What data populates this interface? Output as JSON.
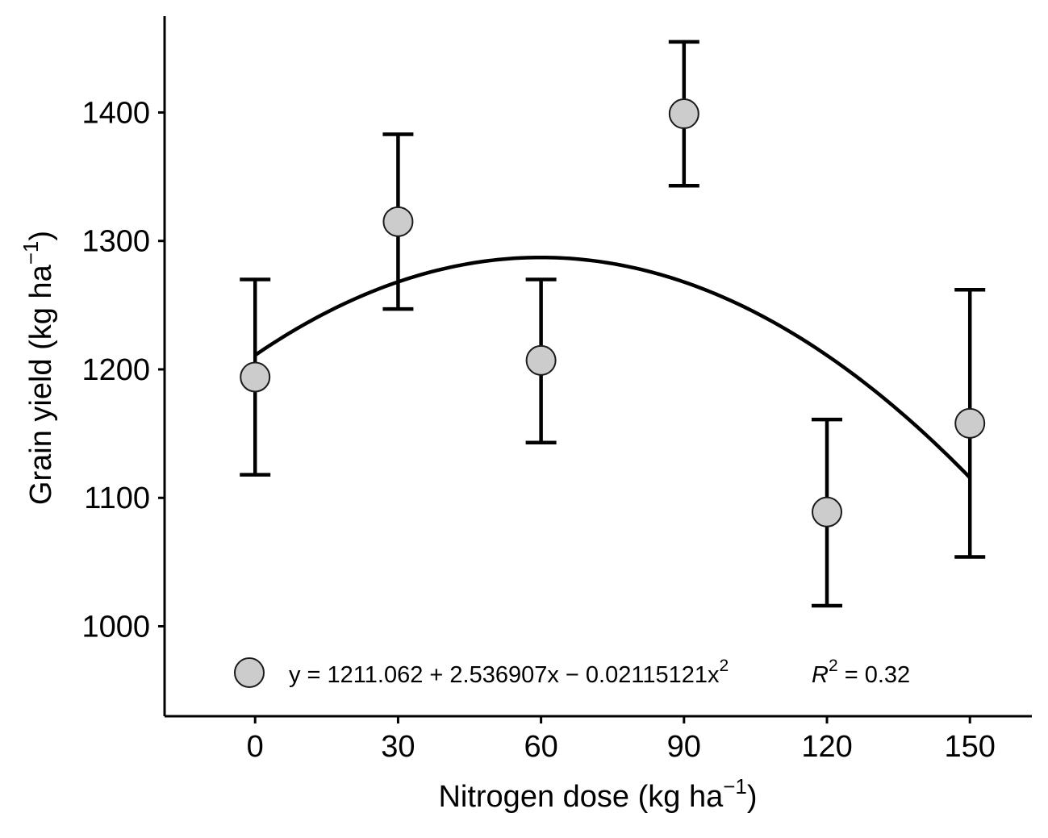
{
  "chart_data": {
    "type": "scatter",
    "x": [
      0,
      30,
      60,
      90,
      120,
      150
    ],
    "y": [
      1194,
      1315,
      1207,
      1399,
      1089,
      1158
    ],
    "error_bars": {
      "upper": [
        1270,
        1383,
        1270,
        1455,
        1161,
        1262
      ],
      "lower": [
        1118,
        1247,
        1143,
        1343,
        1016,
        1054
      ]
    },
    "fit": {
      "type": "quadratic",
      "intercept": 1211.062,
      "linear": 2.536907,
      "quadratic": -0.02115121,
      "r2": 0.32
    },
    "xlabel": "Nitrogen dose (kg ha",
    "xlabel_sup": "−1",
    "xlabel_close": ")",
    "ylabel": "Grain yield (kg ha",
    "ylabel_sup": "−1",
    "ylabel_close": ")",
    "xticks": [
      "0",
      "30",
      "60",
      "90",
      "120",
      "150"
    ],
    "yticks": [
      "1000",
      "1100",
      "1200",
      "1300",
      "1400"
    ],
    "xlim": [
      -19,
      163
    ],
    "ylim": [
      930,
      1475
    ],
    "legend": {
      "position": "bottom-left",
      "equation": "y = 1211.062 + 2.536907x − 0.02115121x",
      "equation_sup": "2",
      "r2_label": "R",
      "r2_sup": "2",
      "r2_value": " = 0.32"
    },
    "colors": {
      "point_fill": "#cccccc",
      "point_stroke": "#1a1a1a",
      "line": "#000000"
    },
    "grid": false
  }
}
